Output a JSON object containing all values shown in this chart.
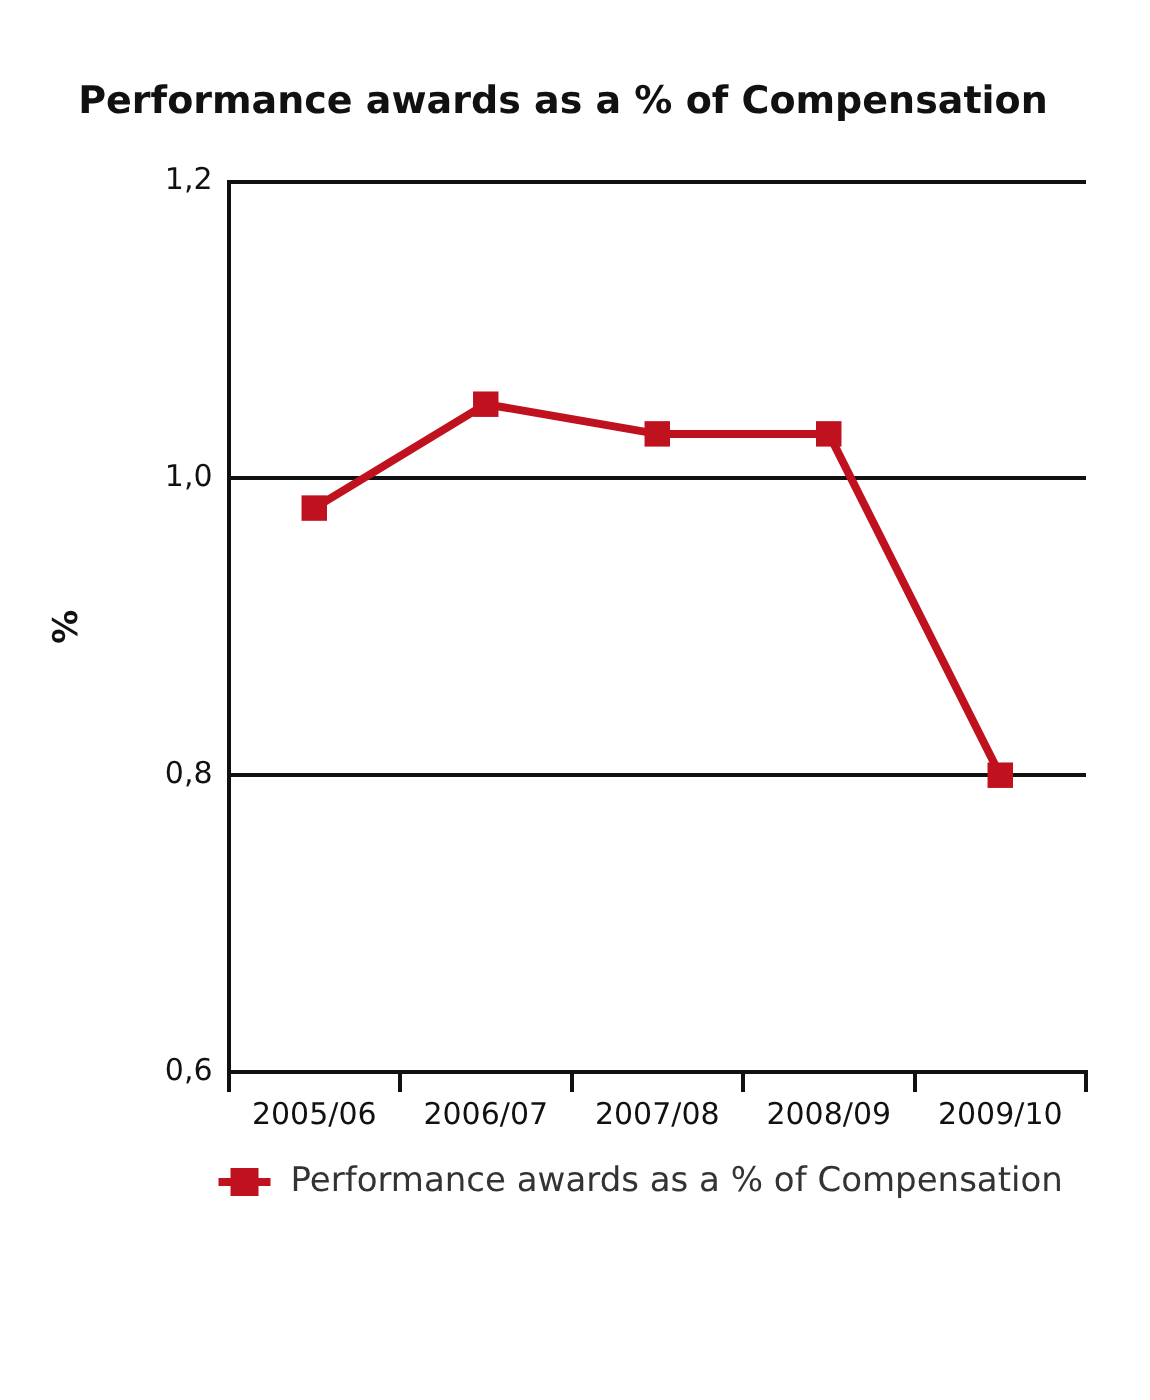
{
  "chart_data": {
    "type": "line",
    "title": "Performance awards as a % of Compensation",
    "ylabel": "%",
    "categories": [
      "2005/06",
      "2006/07",
      "2007/08",
      "2008/09",
      "2009/10"
    ],
    "series": [
      {
        "name": "Performance awards as a % of Compensation",
        "color": "#c0111f",
        "values": [
          0.98,
          1.05,
          1.03,
          1.03,
          0.8
        ]
      }
    ],
    "ylim": [
      0.6,
      1.2
    ],
    "yticks": [
      {
        "value": 0.6,
        "label": "0,6"
      },
      {
        "value": 0.8,
        "label": "0,8"
      },
      {
        "value": 1.0,
        "label": "1,0"
      },
      {
        "value": 1.2,
        "label": "1,2"
      }
    ],
    "grid": "y",
    "legend": "bottom",
    "marker": "square",
    "line_style": "solid"
  }
}
